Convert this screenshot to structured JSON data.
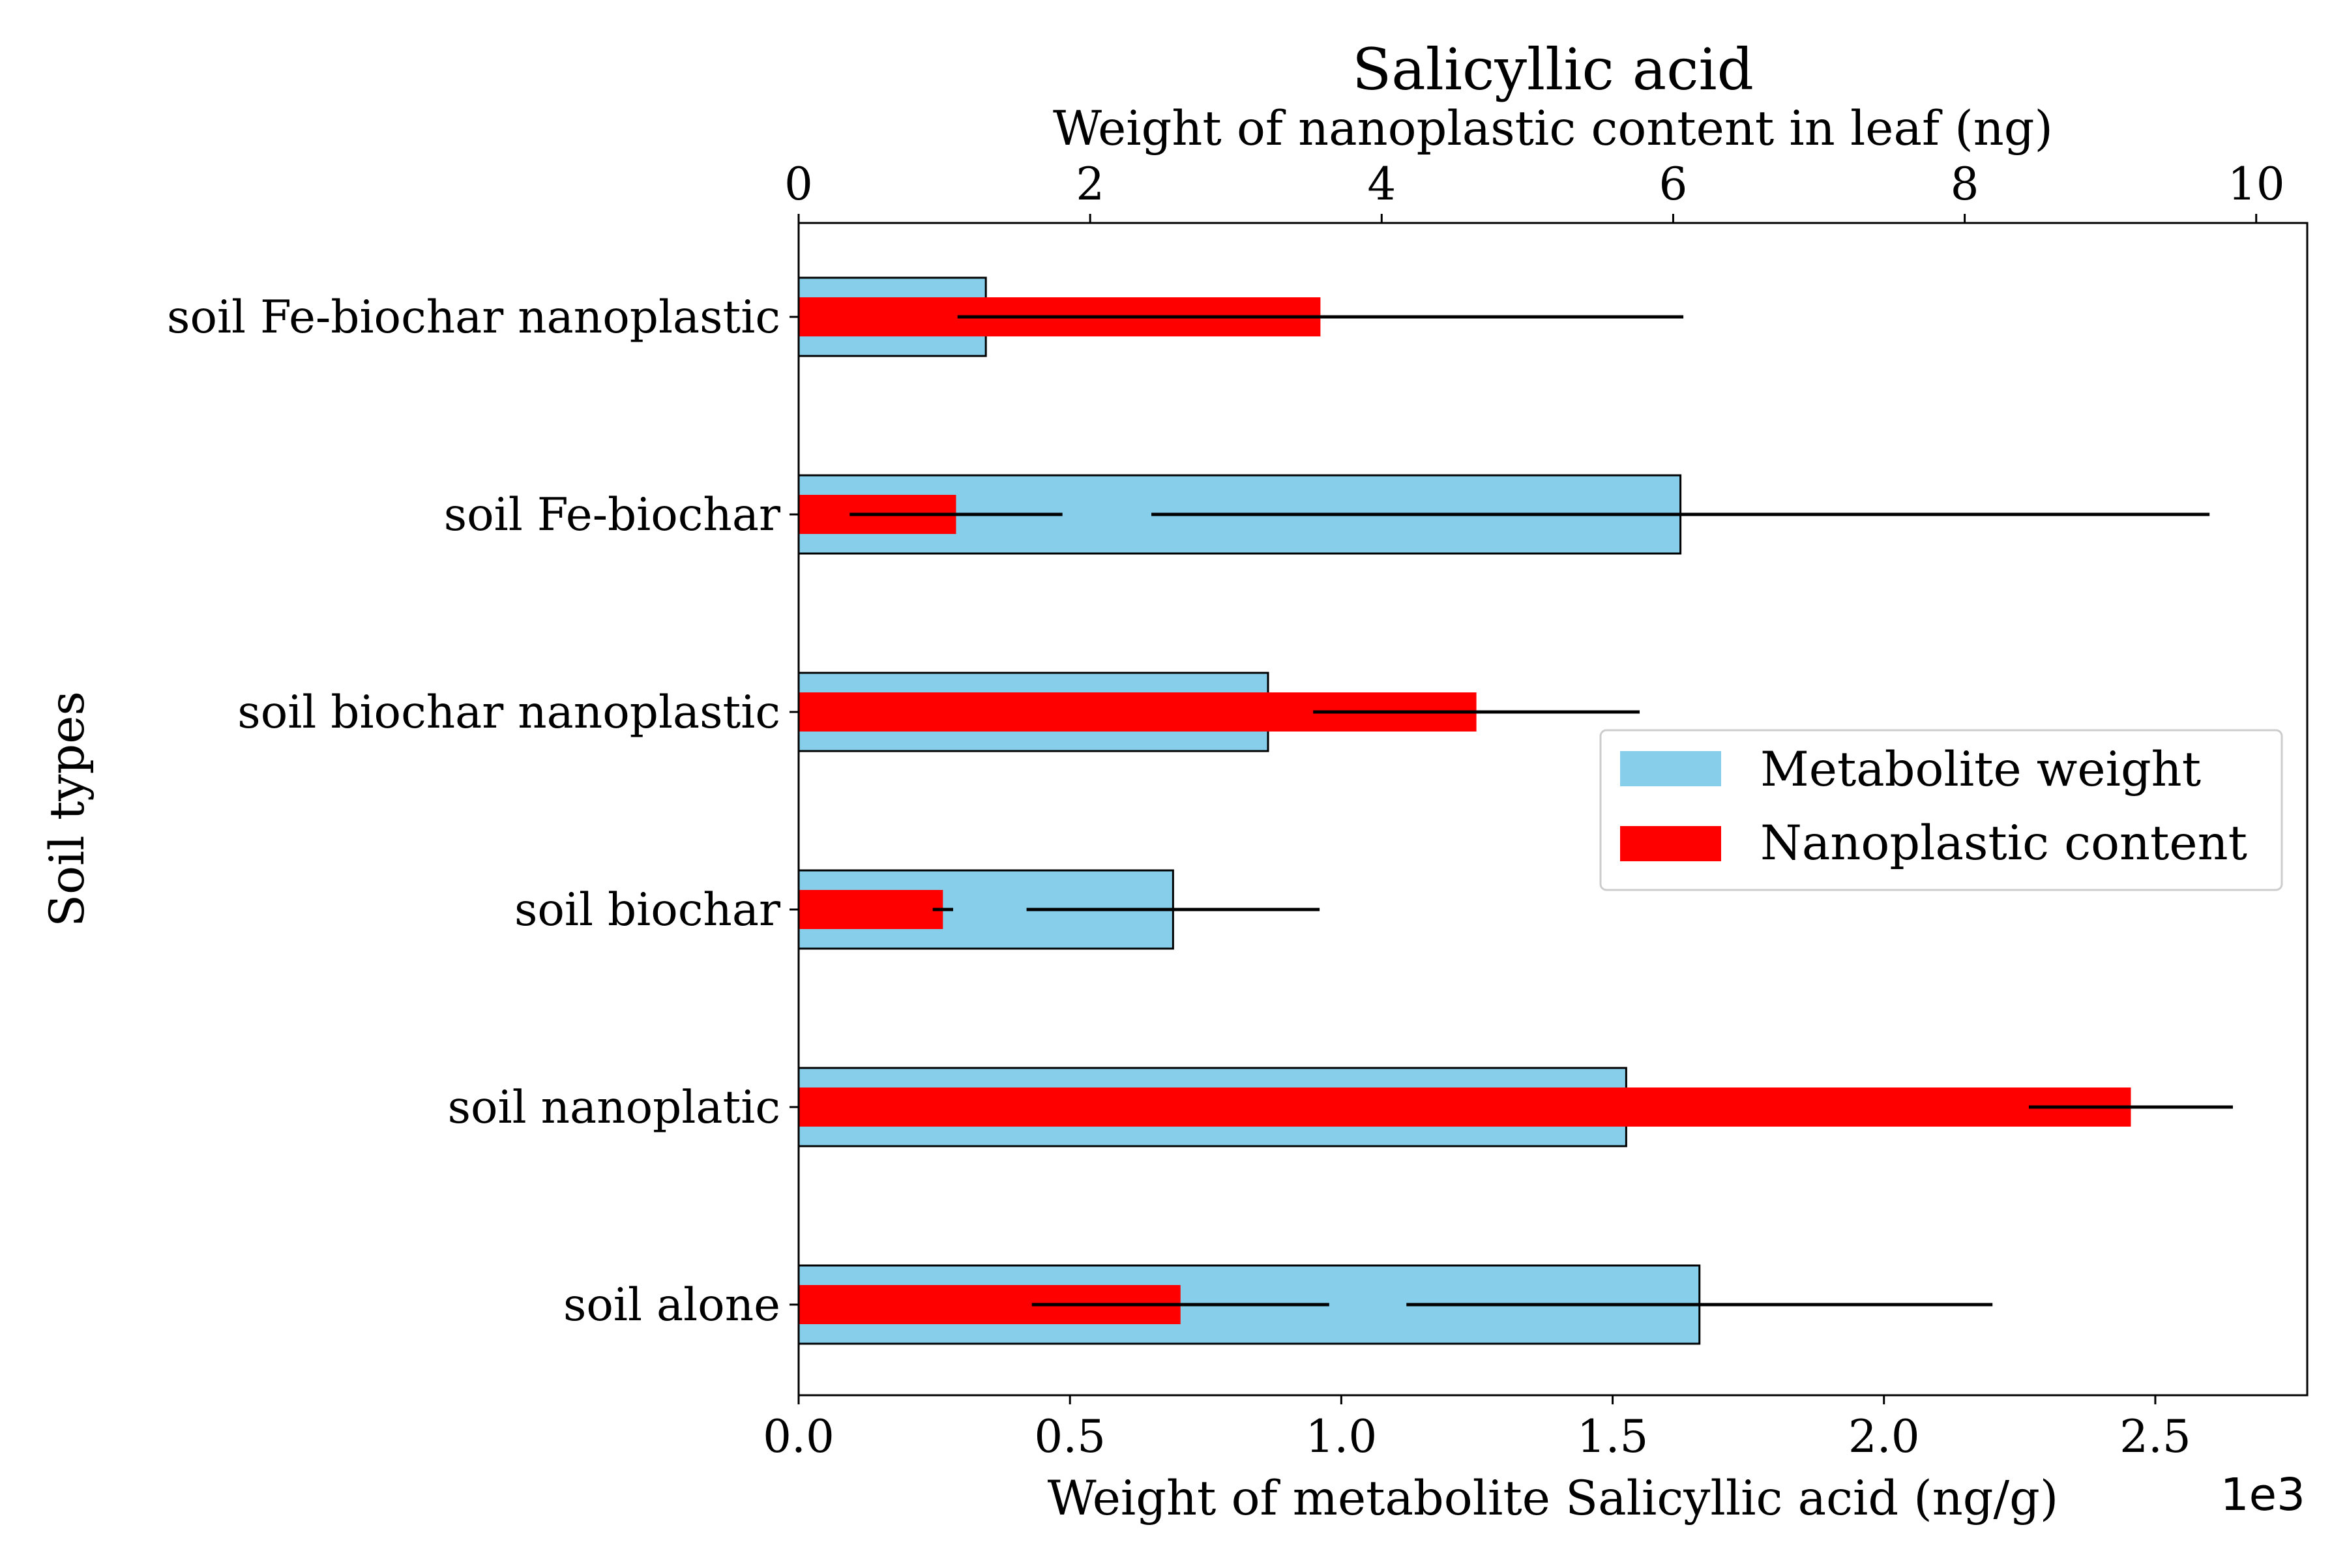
{
  "chart_data": {
    "type": "bar",
    "orientation": "horizontal",
    "title": "Salicyllic acid",
    "title_color": "#a52a2a",
    "ylabel": "Soil types",
    "categories": [
      "soil Fe-biochar nanoplastic",
      "soil Fe-biochar",
      "soil biochar nanoplastic",
      "soil biochar",
      "soil nanoplatic",
      "soil alone"
    ],
    "bottom_axis": {
      "label": "Weight of metabolite Salicyllic acid (ng/g)",
      "xlim": [
        0,
        2.78
      ],
      "ticks": [
        0,
        0.5,
        1.0,
        1.5,
        2.0,
        2.5
      ],
      "tick_labels": [
        "0.0",
        "0.5",
        "1.0",
        "1.5",
        "2.0",
        "2.5"
      ],
      "offset_text": "1e3"
    },
    "top_axis": {
      "label": "Weight of nanoplastic content in leaf (ng)",
      "xlim": [
        0,
        10.35
      ],
      "ticks": [
        0,
        2,
        4,
        6,
        8,
        10
      ],
      "tick_labels": [
        "0",
        "2",
        "4",
        "6",
        "8",
        "10"
      ]
    },
    "series": [
      {
        "name": "Metabolite weight",
        "axis": "bottom",
        "color": "#87ceeb",
        "edge_color": "#000000",
        "values": [
          0.345,
          1.625,
          0.865,
          0.69,
          1.525,
          1.66
        ],
        "errors": [
          0,
          0.975,
          0.0,
          0.27,
          0.0,
          0.54
        ]
      },
      {
        "name": "Nanoplastic content",
        "axis": "top",
        "color": "#ff0000",
        "values": [
          3.58,
          1.08,
          4.65,
          0.99,
          9.14,
          2.62
        ],
        "errors": [
          2.49,
          0.73,
          1.12,
          0.07,
          0.7,
          1.02
        ]
      }
    ],
    "legend": {
      "position": "center-right"
    }
  }
}
